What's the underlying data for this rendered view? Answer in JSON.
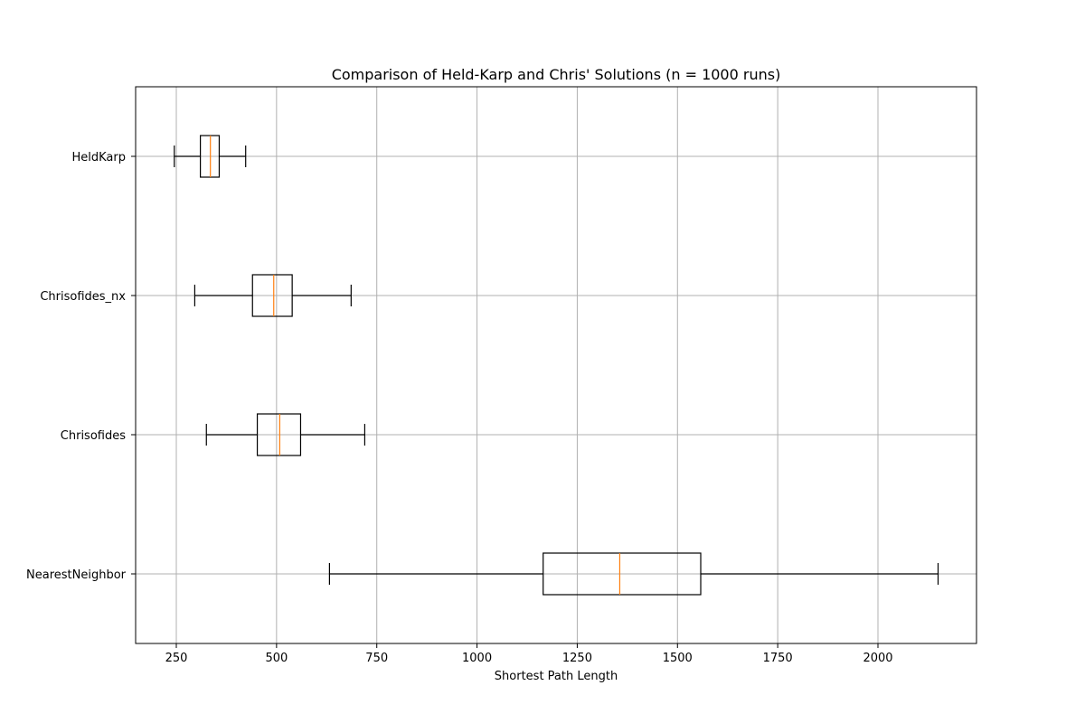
{
  "chart_data": {
    "type": "boxplot",
    "orientation": "horizontal",
    "title": "Comparison of Held-Karp and Chris' Solutions (n = 1000 runs)",
    "xlabel": "Shortest Path Length",
    "ylabel": "",
    "xlim": [
      150,
      2250
    ],
    "xticks": [
      250,
      500,
      750,
      1000,
      1250,
      1500,
      1750,
      2000
    ],
    "grid": true,
    "median_color": "#ff7f0e",
    "box_color": "#000000",
    "series": [
      {
        "name": "HeldKarp",
        "whislo": 245,
        "q1": 310,
        "med": 335,
        "q3": 357,
        "whishi": 423
      },
      {
        "name": "Chrisofides_nx",
        "whislo": 296,
        "q1": 440,
        "med": 493,
        "q3": 539,
        "whishi": 686
      },
      {
        "name": "Chrisofides",
        "whislo": 325,
        "q1": 452,
        "med": 508,
        "q3": 560,
        "whishi": 720
      },
      {
        "name": "NearestNeighbor",
        "whislo": 632,
        "q1": 1165,
        "med": 1356,
        "q3": 1558,
        "whishi": 2150
      }
    ]
  }
}
